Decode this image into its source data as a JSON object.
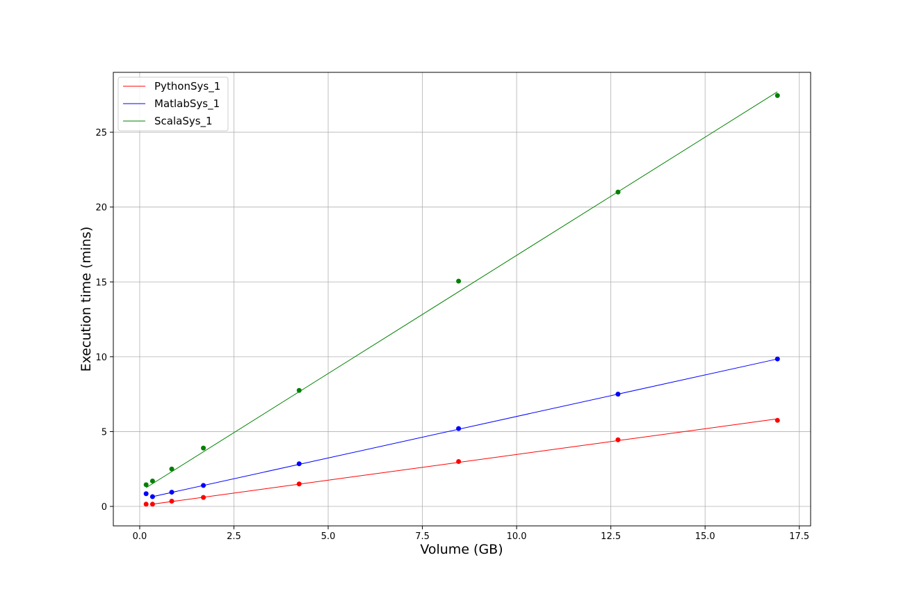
{
  "chart_data": {
    "type": "scatter",
    "title": "",
    "xlabel": "Volume (GB)",
    "ylabel": "Execution time (mins)",
    "xlim": [
      -0.7,
      17.8
    ],
    "ylim": [
      -1.3,
      29.0
    ],
    "xticks": [
      0.0,
      2.5,
      5.0,
      7.5,
      10.0,
      12.5,
      15.0,
      17.5
    ],
    "xtick_labels": [
      "0.0",
      "2.5",
      "5.0",
      "7.5",
      "10.0",
      "12.5",
      "15.0",
      "17.5"
    ],
    "yticks": [
      0,
      5,
      10,
      15,
      20,
      25
    ],
    "ytick_labels": [
      "0",
      "5",
      "10",
      "15",
      "20",
      "25"
    ],
    "grid": true,
    "legend_position": "top-left",
    "series": [
      {
        "name": "PythonSys_1",
        "color": "#ff0000",
        "x": [
          0.17,
          0.34,
          0.85,
          1.69,
          4.23,
          8.46,
          12.69,
          16.92
        ],
        "y": [
          0.15,
          0.15,
          0.35,
          0.6,
          1.5,
          3.0,
          4.45,
          5.75
        ],
        "fit_line": [
          [
            0.34,
            0.15
          ],
          [
            16.92,
            5.85
          ]
        ]
      },
      {
        "name": "MatlabSys_1",
        "color": "#0000ff",
        "x": [
          0.17,
          0.34,
          0.85,
          1.69,
          4.23,
          8.46,
          12.69,
          16.92
        ],
        "y": [
          0.85,
          0.65,
          0.95,
          1.4,
          2.85,
          5.2,
          7.5,
          9.85
        ],
        "fit_line": [
          [
            0.34,
            0.65
          ],
          [
            16.92,
            9.85
          ]
        ]
      },
      {
        "name": "ScalaSys_1",
        "color": "#008000",
        "x": [
          0.17,
          0.34,
          0.85,
          1.69,
          4.23,
          8.46,
          12.69,
          16.92
        ],
        "y": [
          1.45,
          1.7,
          2.5,
          3.9,
          7.75,
          15.05,
          21.0,
          27.45
        ],
        "fit_line": [
          [
            0.17,
            1.25
          ],
          [
            16.92,
            27.7
          ]
        ]
      }
    ]
  }
}
